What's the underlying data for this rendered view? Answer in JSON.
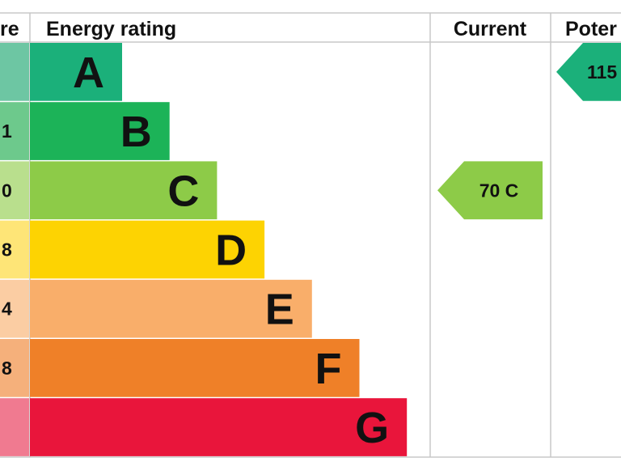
{
  "chart_data": {
    "type": "bar",
    "headers": {
      "score": "re",
      "rating": "Energy rating",
      "current": "Current",
      "potential": "Poter"
    },
    "bands": [
      {
        "letter": "A",
        "score_label": "",
        "color": "#1bb07a",
        "score_color": "#6dc6a3"
      },
      {
        "letter": "B",
        "score_label": "1",
        "color": "#1cb358",
        "score_color": "#6dc98c"
      },
      {
        "letter": "C",
        "score_label": "0",
        "color": "#8dcb48",
        "score_color": "#b9df8d"
      },
      {
        "letter": "D",
        "score_label": "8",
        "color": "#fdd302",
        "score_color": "#fee577"
      },
      {
        "letter": "E",
        "score_label": "4",
        "color": "#f9ae6a",
        "score_color": "#fbcda3"
      },
      {
        "letter": "F",
        "score_label": "8",
        "color": "#ef8028",
        "score_color": "#f5b07b"
      },
      {
        "letter": "G",
        "score_label": "",
        "color": "#e9153b",
        "score_color": "#f07a90"
      }
    ],
    "current": {
      "value": 70,
      "band": "C",
      "label": "70  C",
      "color": "#8dcb48"
    },
    "potential": {
      "value": 115,
      "band": "A",
      "label": "115",
      "color": "#1bb07a"
    }
  }
}
